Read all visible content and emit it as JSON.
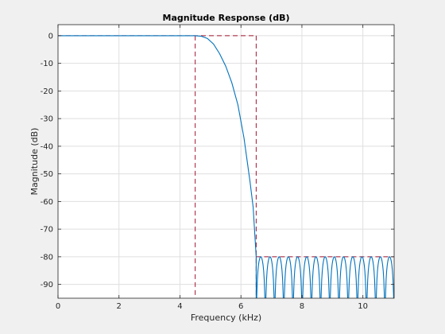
{
  "chart_data": {
    "type": "line",
    "title": "Magnitude Response (dB)",
    "xlabel": "Frequency (kHz)",
    "ylabel": "Magnitude (dB)",
    "xlim": [
      0,
      11.025
    ],
    "ylim": [
      -95,
      4
    ],
    "xticks": [
      0,
      2,
      4,
      6,
      8,
      10
    ],
    "yticks": [
      0,
      -10,
      -20,
      -30,
      -40,
      -50,
      -60,
      -70,
      -80,
      -90
    ],
    "grid": true,
    "series": [
      {
        "color": "#0072bd",
        "passband_edge": 4.5,
        "stopband_edge": 6.5,
        "stopband_level": -80,
        "stopband_null_count": 15,
        "curve": [
          [
            0,
            0
          ],
          [
            4.5,
            0
          ],
          [
            4.7,
            -0.2
          ],
          [
            4.9,
            -1
          ],
          [
            5.1,
            -3
          ],
          [
            5.3,
            -6.5
          ],
          [
            5.5,
            -11
          ],
          [
            5.7,
            -17
          ],
          [
            5.9,
            -25
          ],
          [
            6.1,
            -37
          ],
          [
            6.2,
            -45
          ],
          [
            6.3,
            -53
          ],
          [
            6.4,
            -62
          ],
          [
            6.5,
            -80
          ]
        ]
      }
    ],
    "mask": {
      "color": "#a2142f",
      "passband_edge": 4.5,
      "stopband_edge": 6.5,
      "pass_level": 0,
      "stop_level": -80
    }
  }
}
